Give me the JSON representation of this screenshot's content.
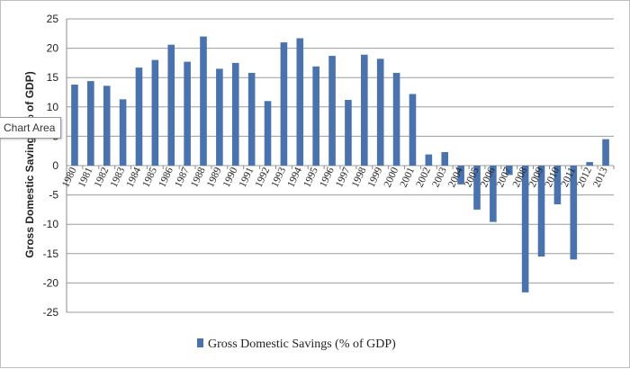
{
  "tooltip": {
    "text": "Chart Area"
  },
  "chart_data": {
    "type": "bar",
    "title": "",
    "xlabel": "",
    "ylabel": "Gross Domestic Savings (% of GDP)",
    "ylim": [
      -25,
      25
    ],
    "yticks": [
      -25,
      -20,
      -15,
      -10,
      -5,
      0,
      5,
      10,
      15,
      20,
      25
    ],
    "grid": true,
    "legend_position": "bottom",
    "categories": [
      "1980",
      "1981",
      "1982",
      "1983",
      "1984",
      "1985",
      "1986",
      "1987",
      "1988",
      "1989",
      "1990",
      "1991",
      "1992",
      "1993",
      "1994",
      "1995",
      "1996",
      "1997",
      "1998",
      "1999",
      "2000",
      "2001",
      "2002",
      "2003",
      "2004",
      "2005",
      "2006",
      "2007",
      "2008",
      "2009",
      "2010",
      "2011",
      "2012",
      "2013"
    ],
    "series": [
      {
        "name": "Gross Domestic Savings (% of GDP)",
        "color": "#4a72ad",
        "values": [
          13.8,
          14.4,
          13.6,
          11.3,
          16.7,
          18.0,
          20.6,
          17.7,
          22.0,
          16.5,
          17.5,
          15.8,
          11.0,
          21.0,
          21.7,
          16.9,
          18.7,
          11.2,
          18.9,
          18.2,
          15.8,
          12.2,
          1.9,
          2.3,
          -3.2,
          -7.5,
          -9.6,
          -1.6,
          -21.6,
          -15.5,
          -6.6,
          -16.0,
          0.6,
          4.5
        ]
      }
    ]
  }
}
